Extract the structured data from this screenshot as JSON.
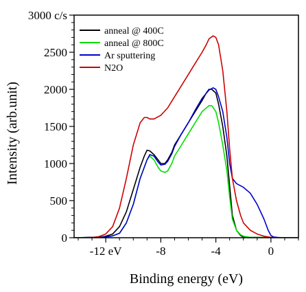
{
  "chart_data": {
    "type": "line",
    "xlabel": "Binding energy (eV)",
    "ylabel": "Intensity (arb.unit)",
    "xlim": [
      -14.3,
      2
    ],
    "ylim": [
      0,
      3000
    ],
    "x_reversed": false,
    "grid": false,
    "legend_position": "top-left",
    "x_ticks": [
      {
        "value": -12,
        "label": "-12 eV"
      },
      {
        "value": -8,
        "label": "-8"
      },
      {
        "value": -4,
        "label": "-4"
      },
      {
        "value": 0,
        "label": "0"
      }
    ],
    "y_ticks": [
      {
        "value": 0,
        "label": "0"
      },
      {
        "value": 500,
        "label": "500"
      },
      {
        "value": 1000,
        "label": "1000"
      },
      {
        "value": 1500,
        "label": "1500"
      },
      {
        "value": 2000,
        "label": "2000"
      },
      {
        "value": 2500,
        "label": "2500"
      },
      {
        "value": 3000,
        "label": "3000 c/s"
      }
    ],
    "series": [
      {
        "name": "anneal @ 400C",
        "color": "#000000",
        "x": [
          -14.3,
          -12.5,
          -12,
          -11.5,
          -11,
          -10.5,
          -10,
          -9.5,
          -9.2,
          -9.0,
          -8.8,
          -8.5,
          -8.2,
          -8.0,
          -7.7,
          -7.5,
          -7.2,
          -7.0,
          -6.5,
          -6.0,
          -5.5,
          -5.0,
          -4.7,
          -4.5,
          -4.3,
          -4.0,
          -3.8,
          -3.5,
          -3.2,
          -3.0,
          -2.8,
          -2.5,
          -2.2,
          -2.0,
          -1.5,
          -1.0,
          0,
          1,
          2
        ],
        "y": [
          0,
          5,
          20,
          50,
          150,
          350,
          650,
          950,
          1100,
          1180,
          1170,
          1120,
          1050,
          1000,
          1000,
          1050,
          1150,
          1250,
          1400,
          1550,
          1700,
          1850,
          1950,
          2000,
          2000,
          1950,
          1800,
          1500,
          1100,
          700,
          300,
          100,
          30,
          10,
          5,
          5,
          5,
          0,
          0
        ]
      },
      {
        "name": "anneal @ 800C",
        "color": "#00dd00",
        "x": [
          -14.3,
          -12,
          -11.5,
          -11,
          -10.5,
          -10,
          -9.5,
          -9.0,
          -8.8,
          -8.5,
          -8.2,
          -8.0,
          -7.7,
          -7.5,
          -7.2,
          -7.0,
          -6.5,
          -6.0,
          -5.5,
          -5.0,
          -4.5,
          -4.3,
          -4.0,
          -3.8,
          -3.5,
          -3.2,
          -3.0,
          -2.8,
          -2.5,
          -2.2,
          -2.0,
          -1.5,
          -1.0,
          0,
          1,
          2
        ],
        "y": [
          0,
          10,
          25,
          60,
          200,
          450,
          800,
          1050,
          1100,
          1050,
          950,
          900,
          880,
          900,
          1000,
          1100,
          1250,
          1400,
          1550,
          1700,
          1780,
          1780,
          1700,
          1550,
          1250,
          900,
          550,
          250,
          100,
          40,
          20,
          5,
          5,
          5,
          0,
          0
        ]
      },
      {
        "name": "Ar sputtering",
        "color": "#0000cc",
        "x": [
          -14.3,
          -12,
          -11.5,
          -11,
          -10.5,
          -10,
          -9.5,
          -9.0,
          -8.8,
          -8.5,
          -8.2,
          -8.0,
          -7.7,
          -7.5,
          -7.2,
          -7.0,
          -6.5,
          -6.0,
          -5.5,
          -5.0,
          -4.5,
          -4.2,
          -4.0,
          -3.8,
          -3.5,
          -3.2,
          -3.0,
          -2.8,
          -2.5,
          -2.2,
          -2.0,
          -1.5,
          -1.0,
          -0.5,
          -0.2,
          0,
          0.2,
          0.5,
          1,
          2
        ],
        "y": [
          0,
          10,
          25,
          60,
          200,
          450,
          800,
          1050,
          1120,
          1100,
          1020,
          980,
          990,
          1030,
          1130,
          1230,
          1400,
          1550,
          1720,
          1880,
          1990,
          2020,
          2000,
          1900,
          1700,
          1350,
          1000,
          800,
          730,
          700,
          680,
          600,
          450,
          250,
          100,
          30,
          10,
          5,
          0,
          0
        ]
      },
      {
        "name": "N2O",
        "color": "#cc0000",
        "x": [
          -14.3,
          -13,
          -12.5,
          -12,
          -11.5,
          -11,
          -10.5,
          -10,
          -9.5,
          -9.2,
          -9.0,
          -8.8,
          -8.5,
          -8.0,
          -7.5,
          -7.0,
          -6.5,
          -6.0,
          -5.5,
          -5.0,
          -4.7,
          -4.5,
          -4.2,
          -4.0,
          -3.8,
          -3.5,
          -3.2,
          -3.0,
          -2.8,
          -2.5,
          -2.2,
          -2.0,
          -1.5,
          -1.0,
          -0.5,
          0,
          1,
          2
        ],
        "y": [
          0,
          5,
          15,
          50,
          150,
          400,
          800,
          1250,
          1550,
          1620,
          1620,
          1600,
          1600,
          1650,
          1750,
          1900,
          2050,
          2200,
          2350,
          2500,
          2600,
          2680,
          2720,
          2700,
          2600,
          2250,
          1700,
          1200,
          800,
          500,
          300,
          200,
          100,
          50,
          20,
          5,
          0,
          0
        ]
      }
    ]
  }
}
